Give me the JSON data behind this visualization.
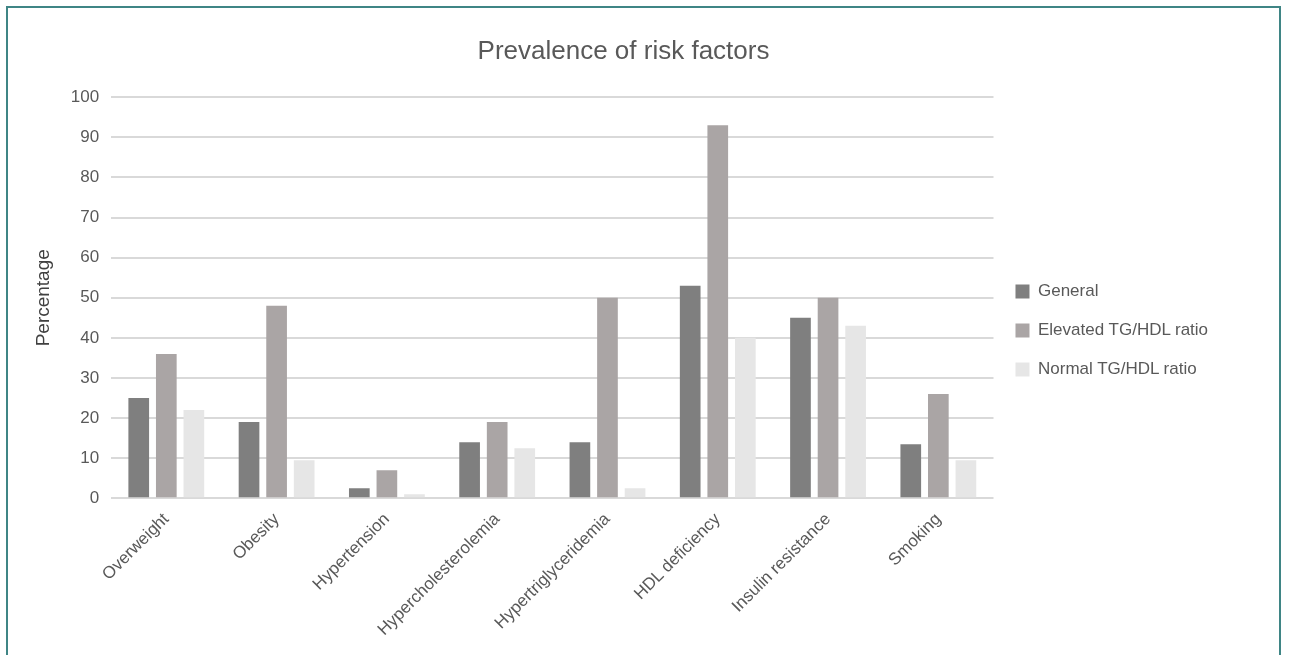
{
  "chart_data": {
    "type": "bar",
    "title": "Prevalence of risk factors",
    "ylabel": "Percentage",
    "categories": [
      "Overweight",
      "Obesity",
      "Hypertension",
      "Hypercholesterolemia",
      "Hypertriglyceridemia",
      "HDL deficiency",
      "Insulin resistance",
      "Smoking"
    ],
    "series": [
      {
        "name": "General",
        "color": "#7f7f7f",
        "values": [
          25,
          19,
          2.5,
          14,
          14,
          53,
          45,
          13.5
        ]
      },
      {
        "name": "Elevated TG/HDL ratio",
        "color": "#aaa5a5",
        "values": [
          36,
          48,
          7,
          19,
          50,
          93,
          50,
          26
        ]
      },
      {
        "name": "Normal TG/HDL ratio",
        "color": "#e6e6e6",
        "values": [
          22,
          9.5,
          1,
          12.5,
          2.5,
          40,
          43,
          9.5
        ]
      }
    ],
    "ylim": [
      0,
      100
    ],
    "yticks": [
      0,
      10,
      20,
      30,
      40,
      50,
      60,
      70,
      80,
      90,
      100
    ],
    "grid": "y",
    "legend": "right"
  }
}
